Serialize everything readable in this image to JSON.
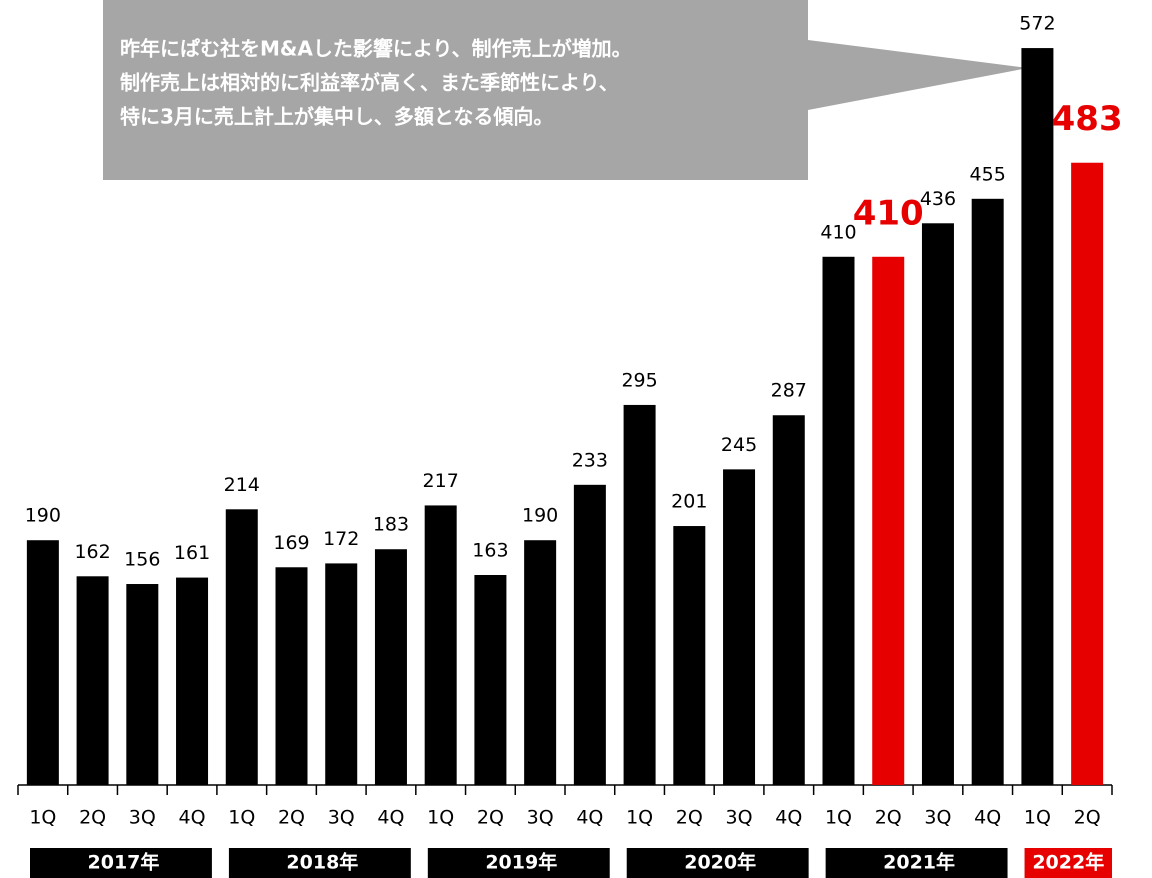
{
  "chart_data": {
    "type": "bar",
    "annotation": [
      "昨年にぱむ社をM&Aした影響により、制作売上が増加。",
      "制作売上は相対的に利益率が高く、また季節性により、",
      "特に3月に売上計上が集中し、多額となる傾向。"
    ],
    "categories": [
      "1Q",
      "2Q",
      "3Q",
      "4Q",
      "1Q",
      "2Q",
      "3Q",
      "4Q",
      "1Q",
      "2Q",
      "3Q",
      "4Q",
      "1Q",
      "2Q",
      "3Q",
      "4Q",
      "1Q",
      "2Q",
      "3Q",
      "4Q",
      "1Q",
      "2Q"
    ],
    "values": [
      190,
      162,
      156,
      161,
      214,
      169,
      172,
      183,
      217,
      163,
      190,
      233,
      295,
      201,
      245,
      287,
      410,
      410,
      436,
      455,
      572,
      483
    ],
    "colors": [
      "#000000",
      "#000000",
      "#000000",
      "#000000",
      "#000000",
      "#000000",
      "#000000",
      "#000000",
      "#000000",
      "#000000",
      "#000000",
      "#000000",
      "#000000",
      "#000000",
      "#000000",
      "#000000",
      "#000000",
      "#e60000",
      "#000000",
      "#000000",
      "#000000",
      "#e60000"
    ],
    "highlight_color": "#e60000",
    "groups": [
      {
        "label": "2017年",
        "color": "#000000"
      },
      {
        "label": "2018年",
        "color": "#000000"
      },
      {
        "label": "2019年",
        "color": "#000000"
      },
      {
        "label": "2020年",
        "color": "#000000"
      },
      {
        "label": "2021年",
        "color": "#000000"
      },
      {
        "label": "2022年",
        "color": "#e60000"
      }
    ],
    "ylim": [
      0,
      600
    ]
  }
}
